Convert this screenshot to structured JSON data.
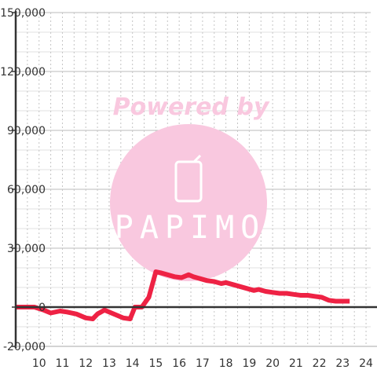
{
  "chart_data": {
    "type": "line",
    "title": "",
    "xlabel": "",
    "ylabel": "",
    "xlim": [
      9.0,
      24.2
    ],
    "ylim": [
      -20000,
      150000
    ],
    "grid": true,
    "x_ticks": [
      10,
      11,
      12,
      13,
      14,
      15,
      16,
      17,
      18,
      19,
      20,
      21,
      22,
      23,
      24
    ],
    "x_tick_labels": [
      "10",
      "11",
      "12",
      "13",
      "14",
      "15",
      "16",
      "17",
      "18",
      "19",
      "20",
      "21",
      "22",
      "23",
      "24"
    ],
    "y_ticks": [
      -20000,
      0,
      30000,
      60000,
      90000,
      120000,
      150000
    ],
    "y_tick_labels": [
      "-20,000",
      "0",
      "30,000",
      "60,000",
      "90,000",
      "120,000",
      "150,000"
    ],
    "series": [
      {
        "color": "#ee2244",
        "x": [
          9.0,
          9.8,
          10.2,
          10.5,
          10.9,
          11.2,
          11.6,
          12.0,
          12.3,
          12.5,
          12.8,
          13.0,
          13.3,
          13.6,
          13.9,
          14.1,
          14.4,
          14.7,
          15.0,
          15.2,
          15.5,
          15.8,
          16.1,
          16.4,
          16.6,
          16.9,
          17.2,
          17.5,
          17.8,
          18.0,
          18.3,
          18.6,
          18.9,
          19.2,
          19.4,
          19.7,
          20.0,
          20.3,
          20.6,
          20.9,
          21.2,
          21.5,
          21.8,
          22.1,
          22.4,
          22.7,
          23.0,
          23.3
        ],
        "y": [
          0,
          0,
          -1500,
          -3000,
          -2000,
          -2500,
          -3500,
          -5500,
          -6000,
          -3500,
          -1500,
          -2500,
          -4000,
          -5500,
          -6000,
          0,
          0,
          5000,
          18000,
          17500,
          16500,
          15500,
          15000,
          16500,
          15500,
          14500,
          13500,
          13000,
          12000,
          12500,
          11500,
          10500,
          9500,
          8500,
          9000,
          8000,
          7500,
          7000,
          7000,
          6500,
          6000,
          6000,
          5500,
          5000,
          3500,
          3000,
          3000,
          3000
        ]
      }
    ]
  },
  "watermark": {
    "text": "Powered by",
    "logo": "PAPIMO",
    "color": "#f9c8df"
  }
}
